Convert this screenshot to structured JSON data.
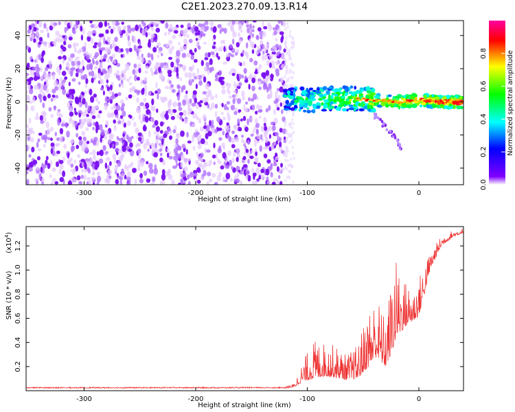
{
  "chart_data": [
    {
      "type": "heatmap",
      "title": "C2E1.2023.270.09.13.R14",
      "xlabel": "Height of straight line (km)",
      "ylabel": "Frequency (Hz)",
      "xlim": [
        -352,
        40
      ],
      "ylim": [
        -50,
        49
      ],
      "xticks": [
        "-300",
        "-200",
        "-100",
        "0"
      ],
      "yticks": [
        "40",
        "20",
        "0",
        "-20",
        "-40"
      ],
      "noise_region_x": [
        -352,
        -120
      ],
      "signal_track": {
        "x": [
          -120,
          -100,
          -80,
          -60,
          -40,
          -20,
          0,
          20,
          40
        ],
        "freq": [
          2,
          1,
          2,
          2,
          1,
          0,
          1,
          0,
          0
        ]
      },
      "branch_track": {
        "x": [
          -40,
          -30,
          -20,
          -15
        ],
        "freq": [
          -8,
          -15,
          -22,
          -30
        ]
      },
      "colorbar": {
        "label": "Normalized spectral amplitude",
        "ticks": [
          "0.0",
          "0.2",
          "0.4",
          "0.6",
          "0.8"
        ],
        "range": [
          0,
          1
        ],
        "colors": [
          "#ffffff",
          "#8000ff",
          "#0000ff",
          "#00ffff",
          "#00ff00",
          "#ffff00",
          "#ff0000",
          "#ff00a0"
        ]
      }
    },
    {
      "type": "line",
      "title": "",
      "xlabel": "Height of straight line (km)",
      "ylabel": "SNR (10 * v/v)",
      "exponent_label": "(x10",
      "exponent_sup": "4",
      "exponent_close": ")",
      "xlim": [
        -352,
        40
      ],
      "ylim": [
        0,
        1.36
      ],
      "xticks": [
        "-300",
        "-200",
        "-100",
        "0"
      ],
      "yticks": [
        "0.2",
        "0.4",
        "0.6",
        "0.8",
        "1.0",
        "1.2"
      ],
      "line_color": "#ee3333",
      "envelope": {
        "x": [
          -352,
          -200,
          -120,
          -112,
          -105,
          -95,
          -85,
          -75,
          -65,
          -55,
          -45,
          -38,
          -30,
          -25,
          -20,
          -15,
          -10,
          -5,
          0,
          5,
          10,
          20,
          30,
          40
        ],
        "base": [
          0.02,
          0.02,
          0.02,
          0.03,
          0.07,
          0.1,
          0.12,
          0.11,
          0.09,
          0.1,
          0.2,
          0.28,
          0.2,
          0.3,
          0.45,
          0.5,
          0.55,
          0.58,
          0.62,
          0.8,
          1.0,
          1.2,
          1.27,
          1.31
        ],
        "peak": [
          0.03,
          0.03,
          0.03,
          0.06,
          0.22,
          0.42,
          0.4,
          0.38,
          0.3,
          0.38,
          0.7,
          0.8,
          0.6,
          0.9,
          1.1,
          0.95,
          0.9,
          0.85,
          0.95,
          1.05,
          1.15,
          1.28,
          1.33,
          1.35
        ]
      }
    }
  ]
}
